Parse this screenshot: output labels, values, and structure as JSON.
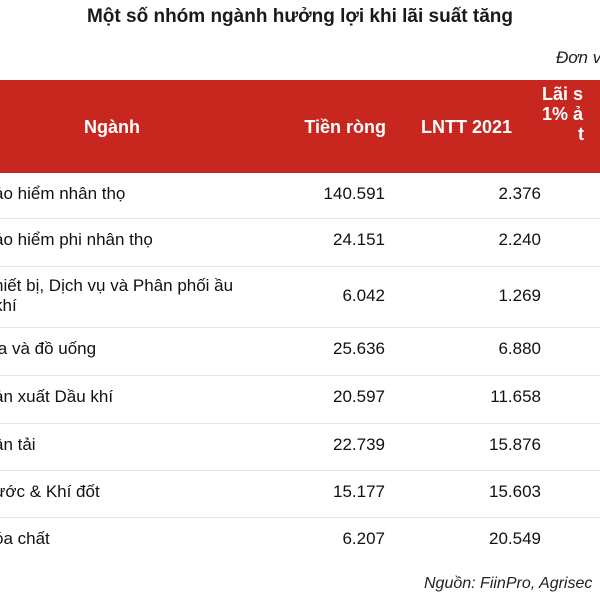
{
  "title": "Một số nhóm ngành hưởng lợi khi lãi suất tăng",
  "unit_label": "Đơn v",
  "table": {
    "headers": {
      "nganh": "Ngành",
      "tien_rong": "Tiền ròng",
      "lntt": "LNTT 2021",
      "lai_suat_line1": "Lãi s",
      "lai_suat_line2": "1% ả",
      "lai_suat_line3": "t"
    },
    "header_color": "#c7271f",
    "rows": [
      {
        "nganh": "ảo hiểm nhân thọ",
        "tien_rong": "140.591",
        "lntt": "2.376"
      },
      {
        "nganh": "ảo hiểm phi nhân thọ",
        "tien_rong": "24.151",
        "lntt": "2.240"
      },
      {
        "nganh": "hiết bị, Dịch vụ và Phân phối ầu khí",
        "tien_rong": "6.042",
        "lntt": "1.269"
      },
      {
        "nganh": "ia và đồ uống",
        "tien_rong": "25.636",
        "lntt": "6.880"
      },
      {
        "nganh": "ản xuất Dầu khí",
        "tien_rong": "20.597",
        "lntt": "11.658"
      },
      {
        "nganh": "ận tải",
        "tien_rong": "22.739",
        "lntt": "15.876"
      },
      {
        "nganh": "ước & Khí đốt",
        "tien_rong": "15.177",
        "lntt": "15.603"
      },
      {
        "nganh": "óa chất",
        "tien_rong": "6.207",
        "lntt": "20.549"
      }
    ]
  },
  "source": "Nguồn: FiinPro, Agrisec"
}
